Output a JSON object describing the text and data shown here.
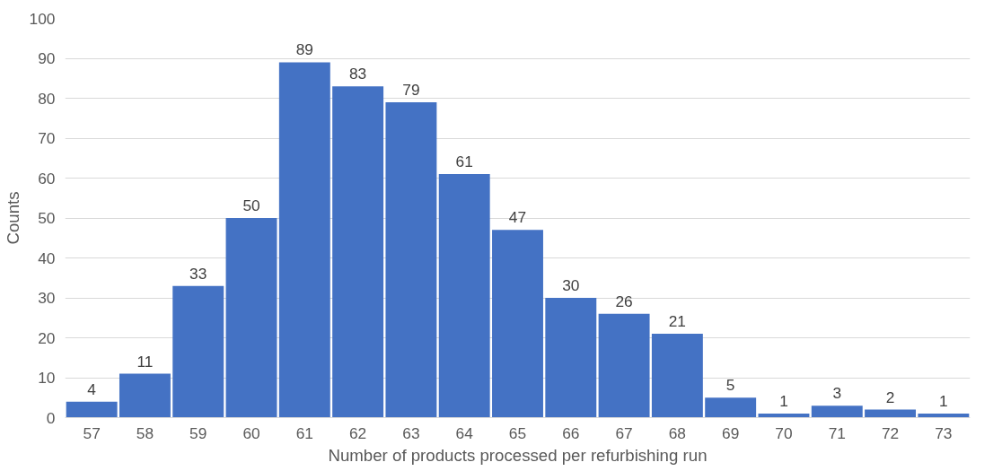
{
  "chart_data": {
    "type": "bar",
    "xlabel": "Number of products processed per refurbishing run",
    "ylabel": "Counts",
    "categories": [
      "57",
      "58",
      "59",
      "60",
      "61",
      "62",
      "63",
      "64",
      "65",
      "66",
      "67",
      "68",
      "69",
      "70",
      "71",
      "72",
      "73"
    ],
    "values": [
      4,
      11,
      33,
      50,
      89,
      83,
      79,
      61,
      47,
      30,
      26,
      21,
      5,
      1,
      3,
      2,
      1
    ],
    "color": "#4472c4",
    "ylim": [
      0,
      100
    ],
    "yticks": [
      0,
      10,
      20,
      30,
      40,
      50,
      60,
      70,
      80,
      90,
      100
    ],
    "grid": "y",
    "data_labels": true
  }
}
